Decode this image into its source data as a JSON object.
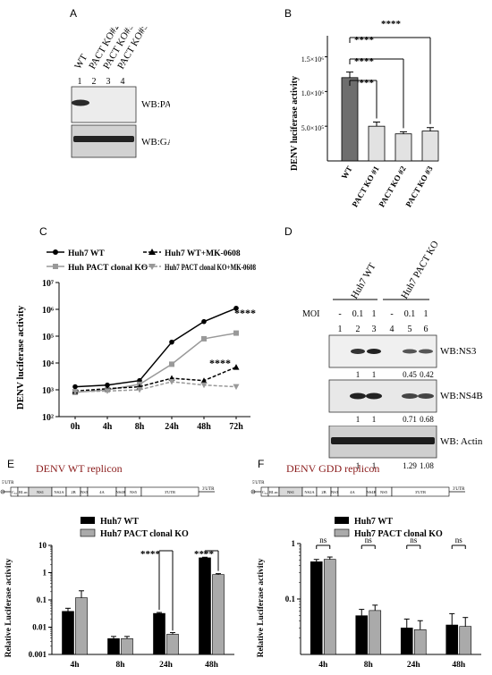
{
  "panels": {
    "a": {
      "label": "A",
      "lane_labels": [
        "WT",
        "PACT KO#2",
        "PACT KO#3",
        "PACT KO#5"
      ],
      "lane_numbers": [
        "1",
        "2",
        "3",
        "4"
      ],
      "blot_labels": [
        "WB:PACT",
        "WB:GAPDH"
      ]
    },
    "b": {
      "label": "B",
      "sig": "****",
      "y_ticks": [
        "5.0×10⁵",
        "1.0×10⁶",
        "1.5×10⁶"
      ]
    },
    "c": {
      "label": "C",
      "legend": [
        "Huh7 WT",
        "Huh PACT clonal KO",
        "Huh7 WT+MK-0608",
        "Huh7 PACT clonal KO+MK-0608"
      ],
      "sig": [
        "****",
        "****"
      ],
      "y_ticks": [
        "10²",
        "10³",
        "10⁴",
        "10⁵",
        "10⁶",
        "10⁷"
      ]
    },
    "d": {
      "label": "D",
      "groups": [
        "Huh7 WT",
        "Huh7 PACT KO"
      ],
      "moi_label": "MOI",
      "moi_values": [
        "-",
        "0.1",
        "1",
        "-",
        "0.1",
        "1"
      ],
      "lane_numbers": [
        "1",
        "2",
        "3",
        "4",
        "5",
        "6"
      ],
      "blot_labels": [
        "WB:NS3",
        "WB:NS4B",
        "WB: Actin"
      ],
      "ns3_quant": [
        "1",
        "1",
        "0.45",
        "0.42"
      ],
      "ns4b_quant": [
        "1",
        "1",
        "0.71",
        "0.68"
      ],
      "actin_quant": [
        "1",
        "1",
        "1.29",
        "1.08"
      ]
    },
    "e": {
      "label": "E",
      "title": "DENV WT replicon",
      "legend": [
        "Huh7 WT",
        "Huh7 PACT clonal KO"
      ],
      "sig": [
        "****",
        "****"
      ],
      "y_ticks": [
        "0.001",
        "0.01",
        "0.1",
        "1",
        "10"
      ],
      "genome": [
        "5'UTR",
        "C₅₅",
        "RLuc",
        "NS1",
        "NS2A",
        "2B",
        "NS3",
        "4A",
        "NS4B",
        "NS5",
        "3'UTR"
      ]
    },
    "f": {
      "label": "F",
      "title": "DENV GDD replicon",
      "legend": [
        "Huh7 WT",
        "Huh7 PACT clonal KO"
      ],
      "sig": [
        "ns",
        "ns",
        "ns",
        "ns"
      ],
      "y_ticks": [
        "0.1",
        "1"
      ],
      "genome": [
        "5'UTR",
        "C₅₅",
        "RLuc",
        "NS1",
        "NS2A",
        "2B",
        "NS3",
        "4A",
        "NS4B",
        "NS5",
        "3'UTR"
      ]
    }
  },
  "chart_data": [
    {
      "type": "bar",
      "panel": "B",
      "ylabel": "DENV luciferase activity",
      "categories": [
        "WT",
        "PACT KO #1",
        "PACT KO #2",
        "PACT KO #3"
      ],
      "values": [
        1200000,
        500000,
        390000,
        430000
      ],
      "errors": [
        80000,
        60000,
        30000,
        50000
      ],
      "ylim": [
        0,
        1700000
      ]
    },
    {
      "type": "line",
      "panel": "C",
      "ylabel": "DENV luciferase activity",
      "categories": [
        "0h",
        "4h",
        "8h",
        "24h",
        "48h",
        "72h"
      ],
      "ylim": [
        100,
        10000000
      ],
      "log_scale": true,
      "series": [
        {
          "name": "Huh7 WT",
          "values": [
            1300,
            1500,
            2200,
            60000,
            350000,
            1100000
          ]
        },
        {
          "name": "Huh PACT clonal KO",
          "values": [
            800,
            1000,
            1600,
            9000,
            80000,
            130000
          ]
        },
        {
          "name": "Huh7 WT+MK-0608",
          "values": [
            900,
            1100,
            1300,
            2700,
            2200,
            7000
          ]
        },
        {
          "name": "Huh7 PACT clonal KO+MK-0608",
          "values": [
            850,
            900,
            1000,
            2000,
            1500,
            1300
          ]
        }
      ]
    },
    {
      "type": "bar",
      "panel": "E",
      "ylabel": "Relative Luciferase activity",
      "categories": [
        "4h",
        "8h",
        "24h",
        "48h"
      ],
      "log_scale": true,
      "ylim": [
        0.001,
        10
      ],
      "series": [
        {
          "name": "Huh7 WT",
          "values": [
            0.038,
            0.0038,
            0.032,
            3.5
          ]
        },
        {
          "name": "Huh7 PACT clonal KO",
          "values": [
            0.12,
            0.0038,
            0.0055,
            0.85
          ]
        }
      ]
    },
    {
      "type": "bar",
      "panel": "F",
      "ylabel": "Relative Luciferase activity",
      "categories": [
        "4h",
        "8h",
        "24h",
        "48h"
      ],
      "log_scale": true,
      "ylim": [
        0.01,
        1
      ],
      "series": [
        {
          "name": "Huh7 WT",
          "values": [
            0.47,
            0.05,
            0.03,
            0.034
          ]
        },
        {
          "name": "Huh7 PACT clonal KO",
          "values": [
            0.52,
            0.062,
            0.028,
            0.032
          ]
        }
      ]
    }
  ]
}
